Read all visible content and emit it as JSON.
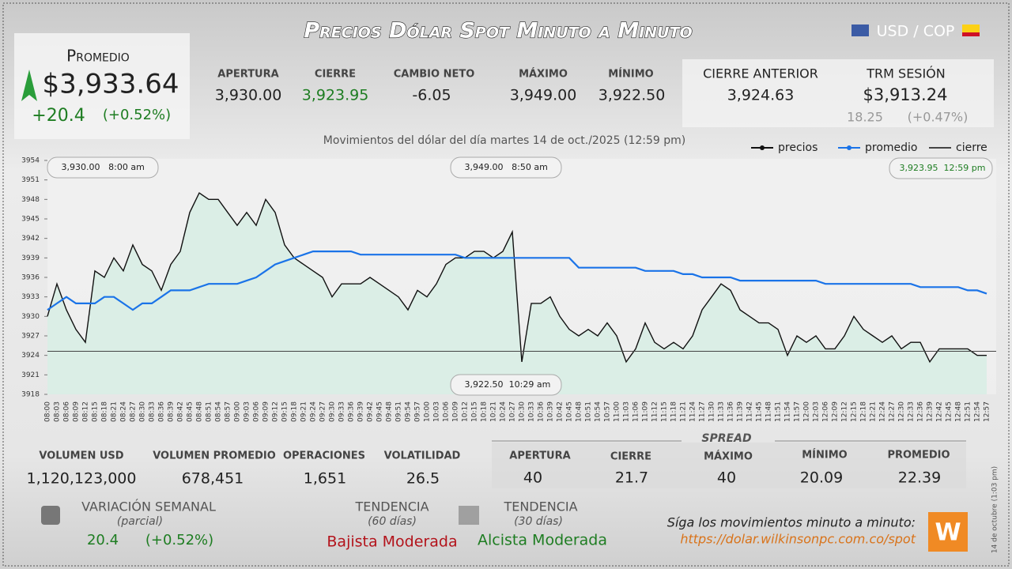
{
  "header": {
    "title": "Precios Dólar Spot Minuto a Minuto",
    "pair": "USD / COP"
  },
  "average_box": {
    "label": "Promedio",
    "value": "$3,933.64",
    "change": "+20.4",
    "change_pct": "(+0.52%)"
  },
  "session": [
    {
      "label": "APERTURA",
      "value": "3,930.00"
    },
    {
      "label": "CIERRE",
      "value": "3,923.95"
    },
    {
      "label": "CAMBIO NETO",
      "value": "-6.05"
    },
    {
      "label": "MÁXIMO",
      "value": "3,949.00"
    },
    {
      "label": "MÍNIMO",
      "value": "3,922.50"
    }
  ],
  "previous": {
    "label": "CIERRE ANTERIOR",
    "value": "3,924.63"
  },
  "trm": {
    "label": "TRM SESIÓN",
    "value": "$3,913.24",
    "change": "18.25",
    "change_pct": "(+0.47%)"
  },
  "chart_data": {
    "type": "line",
    "subtitle": "Movimientos del dólar del día martes 14 de oct./2025 (12:59 pm)",
    "categories": [
      "08:00",
      "08:03",
      "08:06",
      "08:09",
      "08:12",
      "08:15",
      "08:18",
      "08:21",
      "08:24",
      "08:27",
      "08:30",
      "08:33",
      "08:36",
      "08:39",
      "08:42",
      "08:45",
      "08:48",
      "08:51",
      "08:54",
      "08:57",
      "09:00",
      "09:03",
      "09:06",
      "09:09",
      "09:12",
      "09:15",
      "09:18",
      "09:21",
      "09:24",
      "09:27",
      "09:30",
      "09:33",
      "09:36",
      "09:39",
      "09:42",
      "09:45",
      "09:48",
      "09:51",
      "09:54",
      "09:57",
      "10:00",
      "10:03",
      "10:06",
      "10:09",
      "10:12",
      "10:15",
      "10:18",
      "10:21",
      "10:24",
      "10:27",
      "10:30",
      "10:33",
      "10:36",
      "10:39",
      "10:42",
      "10:45",
      "10:48",
      "10:51",
      "10:54",
      "10:57",
      "11:00",
      "11:03",
      "11:06",
      "11:09",
      "11:12",
      "11:15",
      "11:18",
      "11:21",
      "11:24",
      "11:27",
      "11:30",
      "11:33",
      "11:36",
      "11:39",
      "11:42",
      "11:45",
      "11:48",
      "11:51",
      "11:54",
      "11:57",
      "12:00",
      "12:03",
      "12:06",
      "12:09",
      "12:12",
      "12:15",
      "12:18",
      "12:21",
      "12:24",
      "12:27",
      "12:30",
      "12:33",
      "12:36",
      "12:39",
      "12:42",
      "12:45",
      "12:48",
      "12:51",
      "12:54",
      "12:57"
    ],
    "series": [
      {
        "name": "precios",
        "color": "#111111",
        "area_color": "#d6eee4",
        "values": [
          3930,
          3935,
          3931,
          3928,
          3926,
          3937,
          3936,
          3939,
          3937,
          3941,
          3938,
          3937,
          3934,
          3938,
          3940,
          3946,
          3949,
          3948,
          3948,
          3946,
          3944,
          3946,
          3944,
          3948,
          3946,
          3941,
          3939,
          3938,
          3937,
          3936,
          3933,
          3935,
          3935,
          3935,
          3936,
          3935,
          3934,
          3933,
          3931,
          3934,
          3933,
          3935,
          3938,
          3939,
          3939,
          3940,
          3940,
          3939,
          3940,
          3943,
          3923,
          3932,
          3932,
          3933,
          3930,
          3928,
          3927,
          3928,
          3927,
          3929,
          3927,
          3923,
          3925,
          3929,
          3926,
          3925,
          3926,
          3925,
          3927,
          3931,
          3933,
          3935,
          3934,
          3931,
          3930,
          3929,
          3929,
          3928,
          3924,
          3927,
          3926,
          3927,
          3925,
          3925,
          3927,
          3930,
          3928,
          3927,
          3926,
          3927,
          3925,
          3926,
          3926,
          3923,
          3925,
          3925,
          3925,
          3925,
          3924,
          3924
        ]
      },
      {
        "name": "promedio",
        "color": "#1a73e8",
        "values": [
          3931,
          3932,
          3933,
          3932,
          3932,
          3932,
          3933,
          3933,
          3932,
          3931,
          3932,
          3932,
          3933,
          3934,
          3934,
          3934,
          3934.5,
          3935,
          3935,
          3935,
          3935,
          3935.5,
          3936,
          3937,
          3938,
          3938.5,
          3939,
          3939.5,
          3940,
          3940,
          3940,
          3940,
          3940,
          3939.5,
          3939.5,
          3939.5,
          3939.5,
          3939.5,
          3939.5,
          3939.5,
          3939.5,
          3939.5,
          3939.5,
          3939.5,
          3939,
          3939,
          3939,
          3939,
          3939,
          3939,
          3939,
          3939,
          3939,
          3939,
          3939,
          3939,
          3937.5,
          3937.5,
          3937.5,
          3937.5,
          3937.5,
          3937.5,
          3937.5,
          3937,
          3937,
          3937,
          3937,
          3936.5,
          3936.5,
          3936,
          3936,
          3936,
          3936,
          3935.5,
          3935.5,
          3935.5,
          3935.5,
          3935.5,
          3935.5,
          3935.5,
          3935.5,
          3935.5,
          3935,
          3935,
          3935,
          3935,
          3935,
          3935,
          3935,
          3935,
          3935,
          3935,
          3934.5,
          3934.5,
          3934.5,
          3934.5,
          3934.5,
          3934,
          3934,
          3933.5
        ]
      }
    ],
    "reference_line": {
      "name": "cierre",
      "color": "#444444",
      "value": 3924.63
    },
    "ylim": [
      3918,
      3954
    ],
    "yticks": [
      3918,
      3921,
      3924,
      3927,
      3930,
      3933,
      3936,
      3939,
      3942,
      3945,
      3948,
      3951,
      3954
    ],
    "grid": false,
    "annotations": [
      {
        "value": "3,930.00",
        "time": "8:00 am"
      },
      {
        "value": "3,949.00",
        "time": "8:50 am"
      },
      {
        "value": "3,922.50",
        "time": "10:29 am"
      },
      {
        "value": "3,923.95",
        "time": "12:59 pm"
      }
    ]
  },
  "volume": [
    {
      "label": "VOLUMEN USD",
      "value": "1,120,123,000"
    },
    {
      "label": "VOLUMEN PROMEDIO",
      "value": "678,451"
    },
    {
      "label": "OPERACIONES",
      "value": "1,651"
    },
    {
      "label": "VOLATILIDAD",
      "value": "26.5"
    }
  ],
  "spread": {
    "title": "SPREAD",
    "items": [
      {
        "label": "APERTURA",
        "value": "40"
      },
      {
        "label": "CIERRE",
        "value": "21.7"
      },
      {
        "label": "MÁXIMO",
        "value": "40"
      },
      {
        "label": "MÍNIMO",
        "value": "20.09"
      },
      {
        "label": "PROMEDIO",
        "value": "22.39"
      }
    ]
  },
  "weekly": {
    "label": "VARIACIÓN SEMANAL",
    "note": "(parcial)",
    "change": "20.4",
    "change_pct": "(+0.52%)"
  },
  "trends": [
    {
      "label": "TENDENCIA",
      "period": "(60 días)",
      "value": "Bajista Moderada"
    },
    {
      "label": "TENDENCIA",
      "period": "(30 días)",
      "value": "Alcista Moderada"
    }
  ],
  "footer": {
    "text": "Síga los movimientos minuto a minuto:",
    "url": "https://dolar.wilkinsonpc.com.co/spot",
    "stamp": "14 de octubre (1:03 pm)"
  }
}
